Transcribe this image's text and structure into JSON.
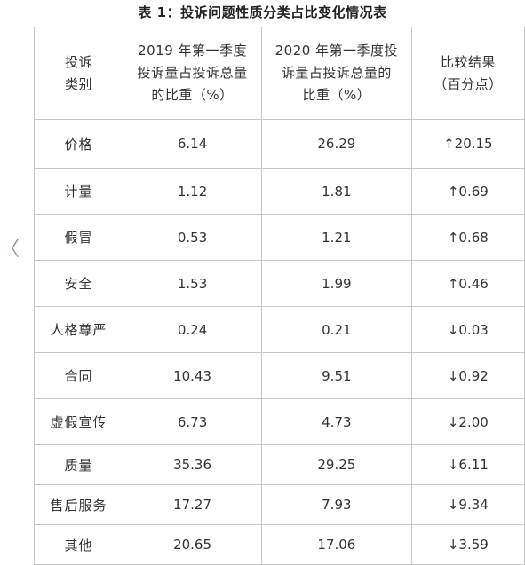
{
  "title": "表 1：投诉问题性质分类占比变化情况表",
  "side_mark": "〈",
  "headers": {
    "category": [
      "投诉",
      "类别"
    ],
    "y2019": [
      "2019 年第一季度",
      "投诉量占投诉总量",
      "的比重（%）"
    ],
    "y2020": [
      "2020 年第一季度投",
      "诉量占投诉总量的",
      "比重（%）"
    ],
    "change": [
      "比较结果",
      "（百分点）"
    ]
  },
  "rows": [
    {
      "category": "价格",
      "y2019": "6.14",
      "y2020": "26.29",
      "change": "↑20.15"
    },
    {
      "category": "计量",
      "y2019": "1.12",
      "y2020": "1.81",
      "change": "↑0.69"
    },
    {
      "category": "假冒",
      "y2019": "0.53",
      "y2020": "1.21",
      "change": "↑0.68"
    },
    {
      "category": "安全",
      "y2019": "1.53",
      "y2020": "1.99",
      "change": "↑0.46"
    },
    {
      "category": "人格尊严",
      "y2019": "0.24",
      "y2020": "0.21",
      "change": "↓0.03"
    },
    {
      "category": "合同",
      "y2019": "10.43",
      "y2020": "9.51",
      "change": "↓0.92"
    },
    {
      "category": "虚假宣传",
      "y2019": "6.73",
      "y2020": "4.73",
      "change": "↓2.00"
    },
    {
      "category": "质量",
      "y2019": "35.36",
      "y2020": "29.25",
      "change": "↓6.11"
    },
    {
      "category": "售后服务",
      "y2019": "17.27",
      "y2020": "7.93",
      "change": "↓9.34"
    },
    {
      "category": "其他",
      "y2019": "20.65",
      "y2020": "17.06",
      "change": "↓3.59"
    }
  ]
}
